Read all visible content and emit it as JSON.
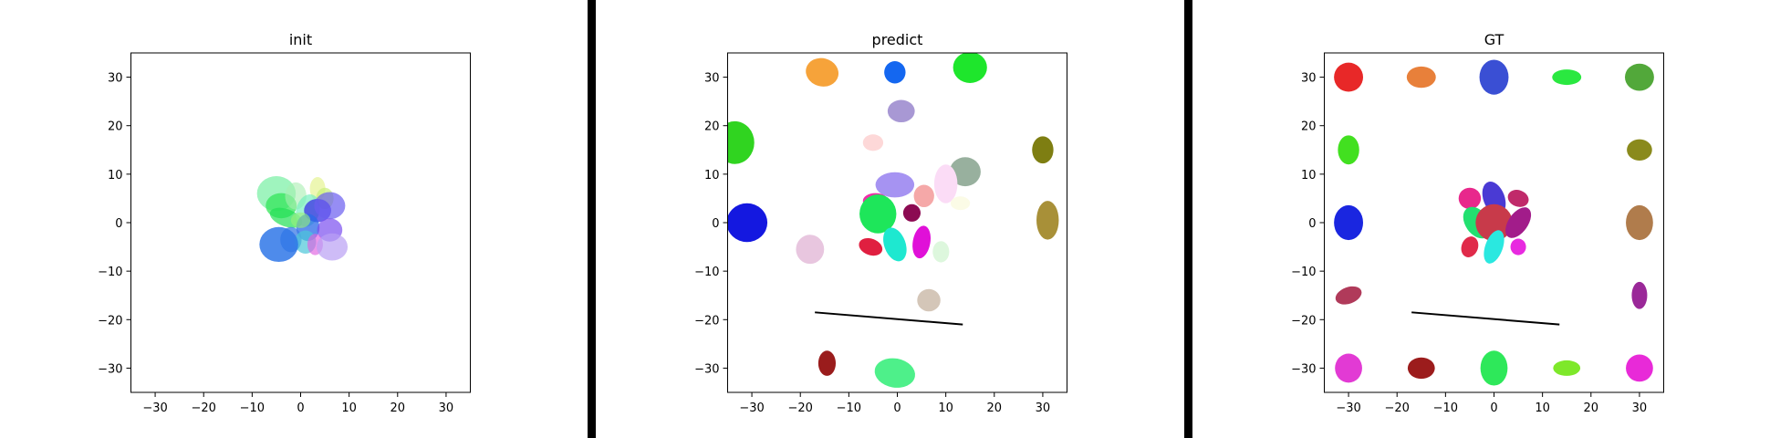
{
  "chart_data": [
    {
      "type": "scatter",
      "title": "init",
      "xlim": [
        -35,
        35
      ],
      "ylim": [
        -35,
        35
      ],
      "x_ticks": [
        -30,
        -20,
        -10,
        0,
        10,
        20,
        30
      ],
      "y_ticks": [
        -30,
        -20,
        -10,
        0,
        10,
        20,
        30
      ],
      "x_tick_labels": [
        "−30",
        "−20",
        "−10",
        "0",
        "10",
        "20",
        "30"
      ],
      "y_tick_labels": [
        "−30",
        "−20",
        "−10",
        "0",
        "10",
        "20",
        "30"
      ],
      "ellipses": [
        {
          "cx": -5,
          "cy": 6,
          "rx": 4,
          "ry": 3.6,
          "angle": 0,
          "color": "#7ff0a8",
          "opacity": 0.75
        },
        {
          "cx": -4,
          "cy": 3.5,
          "rx": 3.2,
          "ry": 2.6,
          "angle": 0,
          "color": "#33e65a",
          "opacity": 0.75
        },
        {
          "cx": -3,
          "cy": 1,
          "rx": 3.5,
          "ry": 1.8,
          "angle": -20,
          "color": "#22e055",
          "opacity": 0.7
        },
        {
          "cx": 3.5,
          "cy": 7,
          "rx": 1.6,
          "ry": 2.4,
          "angle": 0,
          "color": "#e8f5a0",
          "opacity": 0.8
        },
        {
          "cx": 5,
          "cy": 5,
          "rx": 1.8,
          "ry": 2.2,
          "angle": 0,
          "color": "#c9f07a",
          "opacity": 0.7
        },
        {
          "cx": -1,
          "cy": 5.5,
          "rx": 2.2,
          "ry": 2.8,
          "angle": 0,
          "color": "#a8eeb0",
          "opacity": 0.6
        },
        {
          "cx": 1.5,
          "cy": 2.5,
          "rx": 2.4,
          "ry": 3.4,
          "angle": -15,
          "color": "#6eeebb",
          "opacity": 0.65
        },
        {
          "cx": 3.5,
          "cy": 2.5,
          "rx": 2.8,
          "ry": 2.4,
          "angle": 0,
          "color": "#3b30e6",
          "opacity": 0.75
        },
        {
          "cx": 6,
          "cy": 3.5,
          "rx": 3.2,
          "ry": 2.8,
          "angle": 0,
          "color": "#6a5cf0",
          "opacity": 0.7
        },
        {
          "cx": 1.5,
          "cy": -1,
          "rx": 2.4,
          "ry": 2.8,
          "angle": 0,
          "color": "#2a6ae8",
          "opacity": 0.75
        },
        {
          "cx": 6,
          "cy": -1.5,
          "rx": 2.6,
          "ry": 2.4,
          "angle": 0,
          "color": "#7a4ff0",
          "opacity": 0.7
        },
        {
          "cx": -2,
          "cy": -3.5,
          "rx": 2.2,
          "ry": 2.6,
          "angle": 0,
          "color": "#3b7ae6",
          "opacity": 0.75
        },
        {
          "cx": 1,
          "cy": -4,
          "rx": 2.2,
          "ry": 2.4,
          "angle": 0,
          "color": "#4cc6d8",
          "opacity": 0.7
        },
        {
          "cx": 3,
          "cy": -4.5,
          "rx": 1.6,
          "ry": 2.2,
          "angle": 0,
          "color": "#e060e0",
          "opacity": 0.65
        },
        {
          "cx": 6.5,
          "cy": -5,
          "rx": 3.2,
          "ry": 2.8,
          "angle": 0,
          "color": "#b9a0f4",
          "opacity": 0.7
        },
        {
          "cx": -4.5,
          "cy": -4.5,
          "rx": 4,
          "ry": 3.6,
          "angle": 0,
          "color": "#2f77e8",
          "opacity": 0.85
        },
        {
          "cx": 0,
          "cy": 0.5,
          "rx": 2,
          "ry": 1.6,
          "angle": 0,
          "color": "#9bf07a",
          "opacity": 0.6
        }
      ],
      "lines": []
    },
    {
      "type": "scatter",
      "title": "predict",
      "xlim": [
        -35,
        35
      ],
      "ylim": [
        -35,
        35
      ],
      "x_ticks": [
        -30,
        -20,
        -10,
        0,
        10,
        20,
        30
      ],
      "y_ticks": [
        -30,
        -20,
        -10,
        0,
        10,
        20,
        30
      ],
      "x_tick_labels": [
        "−30",
        "−20",
        "−10",
        "0",
        "10",
        "20",
        "30"
      ],
      "y_tick_labels": [
        "−30",
        "−20",
        "−10",
        "0",
        "10",
        "20",
        "30"
      ],
      "ellipses": [
        {
          "cx": -15.5,
          "cy": 31,
          "rx": 3.4,
          "ry": 2.9,
          "angle": -15,
          "color": "#f6a33a",
          "opacity": 1
        },
        {
          "cx": -0.5,
          "cy": 31,
          "rx": 2.2,
          "ry": 2.3,
          "angle": 0,
          "color": "#1467f0",
          "opacity": 1
        },
        {
          "cx": 15,
          "cy": 32,
          "rx": 3.5,
          "ry": 3.2,
          "angle": 0,
          "color": "#1ee62c",
          "opacity": 1
        },
        {
          "cx": 0.8,
          "cy": 23,
          "rx": 2.8,
          "ry": 2.3,
          "angle": 0,
          "color": "#a898d4",
          "opacity": 1
        },
        {
          "cx": -33.5,
          "cy": 16.5,
          "rx": 4,
          "ry": 4.4,
          "angle": 0,
          "color": "#30d420",
          "opacity": 1
        },
        {
          "cx": -5,
          "cy": 16.5,
          "rx": 2.1,
          "ry": 1.7,
          "angle": 0,
          "color": "#fdd8d8",
          "opacity": 1
        },
        {
          "cx": 30,
          "cy": 15,
          "rx": 2.2,
          "ry": 2.8,
          "angle": 0,
          "color": "#7e7e12",
          "opacity": 1
        },
        {
          "cx": 14,
          "cy": 10.5,
          "rx": 3.2,
          "ry": 3,
          "angle": 0,
          "color": "#98b09e",
          "opacity": 1
        },
        {
          "cx": -0.5,
          "cy": 7.8,
          "rx": 4,
          "ry": 2.6,
          "angle": 0,
          "color": "#a693f2",
          "opacity": 1
        },
        {
          "cx": 10,
          "cy": 8,
          "rx": 2.4,
          "ry": 4,
          "angle": 0,
          "color": "#fbdcf6",
          "opacity": 1
        },
        {
          "cx": 13,
          "cy": 4,
          "rx": 2,
          "ry": 1.4,
          "angle": 0,
          "color": "#fbfbe6",
          "opacity": 1
        },
        {
          "cx": 5.5,
          "cy": 5.5,
          "rx": 2.1,
          "ry": 2.3,
          "angle": 0,
          "color": "#f5a8a8",
          "opacity": 1
        },
        {
          "cx": -4.5,
          "cy": 4.5,
          "rx": 2.6,
          "ry": 1.6,
          "angle": 0,
          "color": "#ee2ea8",
          "opacity": 1
        },
        {
          "cx": -4,
          "cy": 1.8,
          "rx": 3.8,
          "ry": 4,
          "angle": 0,
          "color": "#1ee65a",
          "opacity": 1
        },
        {
          "cx": 3,
          "cy": 2,
          "rx": 1.8,
          "ry": 1.8,
          "angle": 0,
          "color": "#8c0a52",
          "opacity": 1
        },
        {
          "cx": 31,
          "cy": 0.5,
          "rx": 2.3,
          "ry": 4,
          "angle": 0,
          "color": "#a89038",
          "opacity": 1
        },
        {
          "cx": -31,
          "cy": 0,
          "rx": 4.2,
          "ry": 4,
          "angle": 0,
          "color": "#1418e0",
          "opacity": 1
        },
        {
          "cx": -18,
          "cy": -5.5,
          "rx": 2.9,
          "ry": 3,
          "angle": 0,
          "color": "#e8c6df",
          "opacity": 1
        },
        {
          "cx": -5.5,
          "cy": -5,
          "rx": 2.5,
          "ry": 1.7,
          "angle": -20,
          "color": "#e01f40",
          "opacity": 1
        },
        {
          "cx": -0.5,
          "cy": -4.5,
          "rx": 2.2,
          "ry": 3.6,
          "angle": 20,
          "color": "#1ee8d0",
          "opacity": 1
        },
        {
          "cx": 5,
          "cy": -4,
          "rx": 1.8,
          "ry": 3.4,
          "angle": -10,
          "color": "#e010d8",
          "opacity": 1
        },
        {
          "cx": 9,
          "cy": -6,
          "rx": 1.7,
          "ry": 2.2,
          "angle": 0,
          "color": "#ddf7dd",
          "opacity": 1
        },
        {
          "cx": 6.5,
          "cy": -16,
          "rx": 2.4,
          "ry": 2.3,
          "angle": 0,
          "color": "#d4c6b8",
          "opacity": 1
        },
        {
          "cx": -14.5,
          "cy": -29,
          "rx": 1.8,
          "ry": 2.6,
          "angle": 0,
          "color": "#9a1c1c",
          "opacity": 1
        },
        {
          "cx": -0.5,
          "cy": -31,
          "rx": 4.2,
          "ry": 3,
          "angle": -10,
          "color": "#4ef08a",
          "opacity": 1
        }
      ],
      "lines": [
        {
          "x1": -17,
          "y1": -18.5,
          "x2": 13.5,
          "y2": -21,
          "color": "#000000"
        }
      ]
    },
    {
      "type": "scatter",
      "title": "GT",
      "xlim": [
        -35,
        35
      ],
      "ylim": [
        -35,
        35
      ],
      "x_ticks": [
        -30,
        -20,
        -10,
        0,
        10,
        20,
        30
      ],
      "y_ticks": [
        -30,
        -20,
        -10,
        0,
        10,
        20,
        30
      ],
      "x_tick_labels": [
        "−30",
        "−20",
        "−10",
        "0",
        "10",
        "20",
        "30"
      ],
      "y_tick_labels": [
        "−30",
        "−20",
        "−10",
        "0",
        "10",
        "20",
        "30"
      ],
      "ellipses": [
        {
          "cx": -30,
          "cy": 30,
          "rx": 3,
          "ry": 3,
          "angle": 0,
          "color": "#e82828",
          "opacity": 1
        },
        {
          "cx": -15,
          "cy": 30,
          "rx": 3,
          "ry": 2.2,
          "angle": 0,
          "color": "#e8803a",
          "opacity": 1
        },
        {
          "cx": 0,
          "cy": 30,
          "rx": 3,
          "ry": 3.6,
          "angle": 0,
          "color": "#3a4fd4",
          "opacity": 1
        },
        {
          "cx": 15,
          "cy": 30,
          "rx": 3,
          "ry": 1.6,
          "angle": 0,
          "color": "#2ae840",
          "opacity": 1
        },
        {
          "cx": 30,
          "cy": 30,
          "rx": 3,
          "ry": 2.8,
          "angle": 0,
          "color": "#52a83a",
          "opacity": 1
        },
        {
          "cx": -30,
          "cy": 15,
          "rx": 2.2,
          "ry": 3,
          "angle": 0,
          "color": "#42e020",
          "opacity": 1
        },
        {
          "cx": 30,
          "cy": 15,
          "rx": 2.6,
          "ry": 2.2,
          "angle": 0,
          "color": "#8a8a1c",
          "opacity": 1
        },
        {
          "cx": -30,
          "cy": 0,
          "rx": 3,
          "ry": 3.6,
          "angle": 0,
          "color": "#1a26e0",
          "opacity": 1
        },
        {
          "cx": 30,
          "cy": 0,
          "rx": 2.8,
          "ry": 3.6,
          "angle": 0,
          "color": "#b07c4c",
          "opacity": 1
        },
        {
          "cx": -30,
          "cy": -15,
          "rx": 2.8,
          "ry": 1.7,
          "angle": 20,
          "color": "#b03a5a",
          "opacity": 1
        },
        {
          "cx": 30,
          "cy": -15,
          "rx": 1.6,
          "ry": 2.8,
          "angle": 0,
          "color": "#9a2898",
          "opacity": 1
        },
        {
          "cx": -30,
          "cy": -30,
          "rx": 2.8,
          "ry": 3,
          "angle": 0,
          "color": "#e23ad4",
          "opacity": 1
        },
        {
          "cx": -15,
          "cy": -30,
          "rx": 2.8,
          "ry": 2.2,
          "angle": 0,
          "color": "#9c1c1c",
          "opacity": 1
        },
        {
          "cx": 0,
          "cy": -30,
          "rx": 2.8,
          "ry": 3.6,
          "angle": 0,
          "color": "#2ee85a",
          "opacity": 1
        },
        {
          "cx": 15,
          "cy": -30,
          "rx": 2.8,
          "ry": 1.6,
          "angle": 0,
          "color": "#7ee82a",
          "opacity": 1
        },
        {
          "cx": 30,
          "cy": -30,
          "rx": 2.8,
          "ry": 2.8,
          "angle": 0,
          "color": "#e82ad8",
          "opacity": 1
        },
        {
          "cx": -5,
          "cy": 5,
          "rx": 2.3,
          "ry": 2.2,
          "angle": 0,
          "color": "#e8288c",
          "opacity": 1
        },
        {
          "cx": 0,
          "cy": 5,
          "rx": 2.2,
          "ry": 3.6,
          "angle": 20,
          "color": "#4a3ad4",
          "opacity": 1
        },
        {
          "cx": 5,
          "cy": 5,
          "rx": 2.2,
          "ry": 1.7,
          "angle": -20,
          "color": "#c02a6a",
          "opacity": 1
        },
        {
          "cx": -3.5,
          "cy": 0,
          "rx": 2.4,
          "ry": 3.6,
          "angle": 35,
          "color": "#22e070",
          "opacity": 1
        },
        {
          "cx": 0,
          "cy": 0,
          "rx": 3.8,
          "ry": 3.8,
          "angle": 0,
          "color": "#c83a4a",
          "opacity": 1
        },
        {
          "cx": 5,
          "cy": 0,
          "rx": 2,
          "ry": 3.6,
          "angle": -35,
          "color": "#a21c8a",
          "opacity": 1
        },
        {
          "cx": -5,
          "cy": -5,
          "rx": 1.7,
          "ry": 2.2,
          "angle": -20,
          "color": "#e02a4a",
          "opacity": 1
        },
        {
          "cx": 0,
          "cy": -5,
          "rx": 1.8,
          "ry": 3.6,
          "angle": -20,
          "color": "#2ae8e0",
          "opacity": 1
        },
        {
          "cx": 5,
          "cy": -5,
          "rx": 1.6,
          "ry": 1.7,
          "angle": 0,
          "color": "#e82ae0",
          "opacity": 1
        }
      ],
      "lines": [
        {
          "x1": -17,
          "y1": -18.5,
          "x2": 13.5,
          "y2": -21,
          "color": "#000000"
        }
      ]
    }
  ],
  "separator_color": "#000000"
}
